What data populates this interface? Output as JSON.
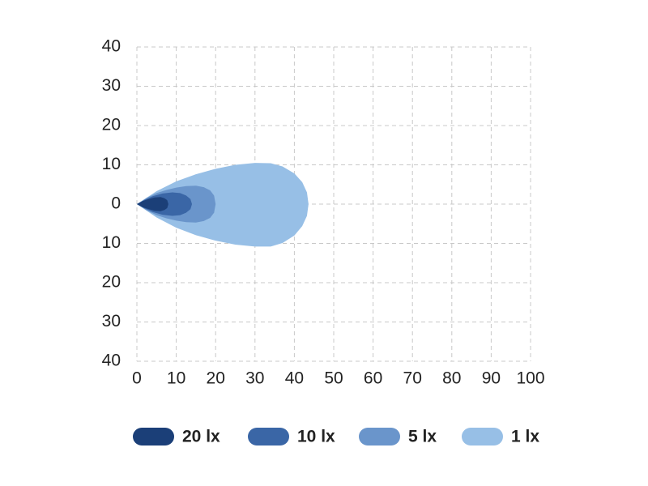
{
  "chart_data": {
    "type": "area",
    "xlim": [
      0,
      100
    ],
    "ylim": [
      -40,
      40
    ],
    "xticks": [
      0,
      10,
      20,
      30,
      40,
      50,
      60,
      70,
      80,
      90,
      100
    ],
    "yticks": [
      {
        "value": -40,
        "label": "40"
      },
      {
        "value": -30,
        "label": "30"
      },
      {
        "value": -20,
        "label": "20"
      },
      {
        "value": -10,
        "label": "10"
      },
      0,
      10,
      20,
      30,
      40
    ],
    "grid": true,
    "legend": "bottom",
    "series": [
      {
        "name": "20 lx",
        "color": "#1b3f78",
        "x": [
          0,
          1.5,
          3,
          4.5,
          6,
          7,
          7.7,
          8,
          7.7,
          7,
          6,
          4.5,
          3,
          1.5,
          0
        ],
        "values": [
          0,
          0.8,
          1.3,
          1.7,
          1.8,
          1.5,
          1,
          0,
          -1,
          -1.5,
          -1.8,
          -1.7,
          -1.3,
          -0.8,
          0
        ]
      },
      {
        "name": "10 lx",
        "color": "#3a66a6",
        "x": [
          0,
          2,
          4,
          6.5,
          9,
          11,
          12.5,
          13.6,
          14,
          13.6,
          12.5,
          11,
          9,
          6.5,
          4,
          2,
          0
        ],
        "values": [
          0,
          1.1,
          2,
          2.7,
          3,
          2.8,
          2.2,
          1.3,
          0,
          -1.3,
          -2.2,
          -2.8,
          -3,
          -2.7,
          -2,
          -1.1,
          0
        ]
      },
      {
        "name": "5 lx",
        "color": "#6a95cb",
        "x": [
          0,
          2.5,
          5,
          7.5,
          10,
          12.5,
          15,
          17,
          18.6,
          19.6,
          20,
          19.6,
          18.6,
          17,
          15,
          12.5,
          10,
          7.5,
          5,
          2.5,
          0
        ],
        "values": [
          0,
          1.6,
          2.8,
          3.6,
          4.2,
          4.6,
          4.7,
          4.3,
          3.5,
          2.2,
          0,
          -2.2,
          -3.5,
          -4.3,
          -4.7,
          -4.6,
          -4.2,
          -3.6,
          -2.8,
          -1.6,
          0
        ]
      },
      {
        "name": "1 lx",
        "color": "#97bfe6",
        "x": [
          0,
          5,
          10,
          15,
          20,
          25,
          30,
          34,
          37,
          40,
          42,
          43.2,
          43.6,
          43.2,
          42,
          40,
          37,
          34,
          30,
          25,
          20,
          15,
          10,
          5,
          0
        ],
        "values": [
          0,
          3.3,
          5.8,
          7.6,
          9,
          10,
          10.5,
          10.4,
          9.6,
          7.8,
          5.6,
          3,
          0,
          -3,
          -5.6,
          -8,
          -9.9,
          -10.8,
          -10.8,
          -10.3,
          -9.3,
          -7.9,
          -6,
          -3.4,
          0
        ]
      }
    ]
  }
}
